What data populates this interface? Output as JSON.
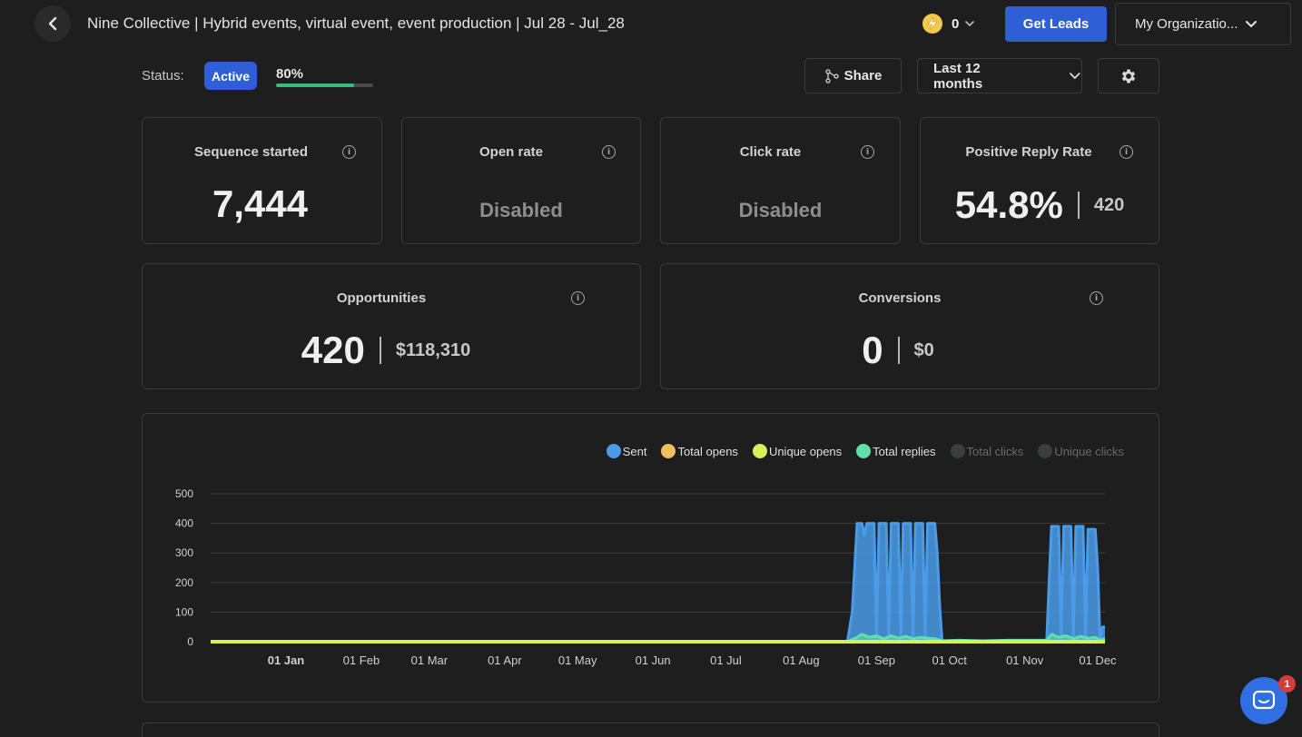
{
  "header": {
    "title": "Nine Collective | Hybrid events, virtual event, event production | Jul 28 - Jul_28",
    "credits": "0",
    "get_leads_label": "Get Leads",
    "org_label": "My Organizatio..."
  },
  "status": {
    "label": "Status:",
    "badge": "Active",
    "progress_text": "80%",
    "progress_value": 0.8
  },
  "toolbar": {
    "share_label": "Share",
    "range_label": "Last 12 months"
  },
  "stats": {
    "sequence_started": {
      "title": "Sequence started",
      "value": "7,444"
    },
    "open_rate": {
      "title": "Open rate",
      "value": "Disabled"
    },
    "click_rate": {
      "title": "Click rate",
      "value": "Disabled"
    },
    "positive_reply_rate": {
      "title": "Positive Reply Rate",
      "value": "54.8%",
      "secondary": "420"
    },
    "opportunities": {
      "title": "Opportunities",
      "value": "420",
      "secondary": "$118,310"
    },
    "conversions": {
      "title": "Conversions",
      "value": "0",
      "secondary": "$0"
    }
  },
  "legend": [
    {
      "label": "Sent",
      "color": "#4a9be8",
      "active": true
    },
    {
      "label": "Total opens",
      "color": "#f2c05a",
      "active": true
    },
    {
      "label": "Unique opens",
      "color": "#d8ef5a",
      "active": true
    },
    {
      "label": "Total replies",
      "color": "#5fe0a8",
      "active": true
    },
    {
      "label": "Total clicks",
      "color": "#3a3f3c",
      "active": false
    },
    {
      "label": "Unique clicks",
      "color": "#3a3f3c",
      "active": false
    }
  ],
  "chart_data": {
    "type": "area",
    "ylim": [
      0,
      500
    ],
    "yticks": [
      0,
      100,
      200,
      300,
      400,
      500
    ],
    "x_tick_labels": [
      "01 Jan",
      "01 Feb",
      "01 Mar",
      "01 Apr",
      "01 May",
      "01 Jun",
      "01 Jul",
      "01 Aug",
      "01 Sep",
      "01 Oct",
      "01 Nov",
      "01 Dec"
    ],
    "x_tick_bold": "01 Jan",
    "series": [
      {
        "name": "Sent",
        "color": "#4a9be8",
        "points": [
          [
            "2022-12-01",
            0
          ],
          [
            "2023-08-20",
            0
          ],
          [
            "2023-08-22",
            100
          ],
          [
            "2023-08-24",
            400
          ],
          [
            "2023-08-26",
            400
          ],
          [
            "2023-08-27",
            360
          ],
          [
            "2023-08-28",
            400
          ],
          [
            "2023-08-31",
            400
          ],
          [
            "2023-09-01",
            10
          ],
          [
            "2023-09-02",
            400
          ],
          [
            "2023-09-05",
            400
          ],
          [
            "2023-09-06",
            10
          ],
          [
            "2023-09-07",
            400
          ],
          [
            "2023-09-10",
            400
          ],
          [
            "2023-09-11",
            10
          ],
          [
            "2023-09-12",
            400
          ],
          [
            "2023-09-15",
            400
          ],
          [
            "2023-09-16",
            10
          ],
          [
            "2023-09-17",
            400
          ],
          [
            "2023-09-20",
            400
          ],
          [
            "2023-09-21",
            10
          ],
          [
            "2023-09-22",
            400
          ],
          [
            "2023-09-25",
            400
          ],
          [
            "2023-09-26",
            300
          ],
          [
            "2023-09-27",
            120
          ],
          [
            "2023-09-28",
            0
          ],
          [
            "2023-11-10",
            0
          ],
          [
            "2023-11-11",
            200
          ],
          [
            "2023-11-12",
            390
          ],
          [
            "2023-11-15",
            390
          ],
          [
            "2023-11-16",
            10
          ],
          [
            "2023-11-17",
            390
          ],
          [
            "2023-11-20",
            390
          ],
          [
            "2023-11-21",
            10
          ],
          [
            "2023-11-22",
            390
          ],
          [
            "2023-11-25",
            390
          ],
          [
            "2023-11-26",
            10
          ],
          [
            "2023-11-27",
            380
          ],
          [
            "2023-11-30",
            380
          ],
          [
            "2023-12-01",
            250
          ],
          [
            "2023-12-02",
            0
          ],
          [
            "2023-12-03",
            50
          ],
          [
            "2023-12-04",
            50
          ]
        ]
      },
      {
        "name": "Total replies",
        "color": "#5fe0a8",
        "points": [
          [
            "2022-12-01",
            0
          ],
          [
            "2023-08-20",
            0
          ],
          [
            "2023-08-24",
            15
          ],
          [
            "2023-08-26",
            25
          ],
          [
            "2023-08-29",
            15
          ],
          [
            "2023-09-01",
            20
          ],
          [
            "2023-09-04",
            10
          ],
          [
            "2023-09-07",
            20
          ],
          [
            "2023-09-10",
            12
          ],
          [
            "2023-09-13",
            18
          ],
          [
            "2023-09-16",
            10
          ],
          [
            "2023-09-19",
            15
          ],
          [
            "2023-09-22",
            12
          ],
          [
            "2023-09-25",
            10
          ],
          [
            "2023-09-28",
            3
          ],
          [
            "2023-10-05",
            5
          ],
          [
            "2023-10-15",
            3
          ],
          [
            "2023-10-25",
            5
          ],
          [
            "2023-11-10",
            5
          ],
          [
            "2023-11-12",
            25
          ],
          [
            "2023-11-15",
            15
          ],
          [
            "2023-11-18",
            20
          ],
          [
            "2023-11-21",
            10
          ],
          [
            "2023-11-24",
            18
          ],
          [
            "2023-11-27",
            12
          ],
          [
            "2023-11-30",
            15
          ],
          [
            "2023-12-02",
            5
          ],
          [
            "2023-12-04",
            10
          ]
        ]
      },
      {
        "name": "Total opens",
        "color": "#f2c05a",
        "points": [
          [
            "2022-12-01",
            0
          ],
          [
            "2023-12-04",
            0
          ]
        ]
      },
      {
        "name": "Unique opens",
        "color": "#d8ef5a",
        "points": [
          [
            "2022-12-01",
            0
          ],
          [
            "2023-12-04",
            0
          ]
        ]
      }
    ]
  }
}
